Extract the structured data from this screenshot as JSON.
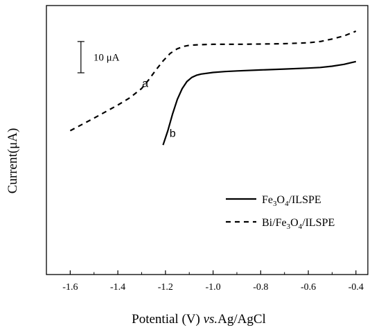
{
  "chart_data": {
    "type": "line",
    "xlabel_parts": [
      "Potential (V) ",
      "vs.",
      "Ag/AgCl"
    ],
    "ylabel": "Current(μA)",
    "xlim": [
      -1.7,
      -0.35
    ],
    "ylim": [
      -68,
      18
    ],
    "xticks": [
      -1.6,
      -1.4,
      -1.2,
      -1.0,
      -0.8,
      -0.6,
      -0.4
    ],
    "xtick_labels": [
      "-1.6",
      "-1.4",
      "-1.2",
      "-1.0",
      "-0.8",
      "-0.6",
      "-0.4"
    ],
    "grid": false,
    "legend_position": "bottom-right",
    "scale_bar": {
      "label": "10 μA",
      "value": 10,
      "center_x": -1.555,
      "center_y": 1.5
    },
    "series": [
      {
        "name_parts": [
          [
            "Fe",
            ""
          ],
          [
            "3",
            "sub"
          ],
          [
            "O",
            ""
          ],
          [
            "4",
            "sub"
          ],
          [
            "/ILSPE",
            ""
          ]
        ],
        "curve_label": "b",
        "curve_label_at": [
          -1.17,
          -24
        ],
        "style": "solid",
        "x": [
          -1.21,
          -1.19,
          -1.17,
          -1.15,
          -1.13,
          -1.11,
          -1.09,
          -1.07,
          -1.05,
          -1.0,
          -0.95,
          -0.9,
          -0.8,
          -0.7,
          -0.6,
          -0.55,
          -0.5,
          -0.45,
          -0.4
        ],
        "y": [
          -26.6,
          -22.0,
          -16.6,
          -12.0,
          -8.6,
          -6.3,
          -5.0,
          -4.3,
          -3.9,
          -3.4,
          -3.1,
          -2.9,
          -2.6,
          -2.3,
          -2.0,
          -1.8,
          -1.4,
          -0.8,
          0.1
        ]
      },
      {
        "name_parts": [
          [
            "Bi/Fe",
            ""
          ],
          [
            "3",
            "sub"
          ],
          [
            "O",
            ""
          ],
          [
            "4",
            "sub"
          ],
          [
            "/ILSPE",
            ""
          ]
        ],
        "curve_label": "a",
        "curve_label_at": [
          -1.285,
          -8
        ],
        "style": "dashed",
        "x": [
          -1.6,
          -1.5,
          -1.4,
          -1.35,
          -1.3,
          -1.27,
          -1.24,
          -1.21,
          -1.18,
          -1.15,
          -1.12,
          -1.1,
          -1.05,
          -1.0,
          -0.9,
          -0.8,
          -0.7,
          -0.6,
          -0.55,
          -0.5,
          -0.45,
          -0.4
        ],
        "y": [
          -22.0,
          -18.0,
          -13.8,
          -11.5,
          -8.5,
          -5.7,
          -2.6,
          0.3,
          2.7,
          4.2,
          5.0,
          5.3,
          5.5,
          5.6,
          5.6,
          5.7,
          5.8,
          6.1,
          6.5,
          7.3,
          8.3,
          9.8
        ]
      }
    ]
  }
}
